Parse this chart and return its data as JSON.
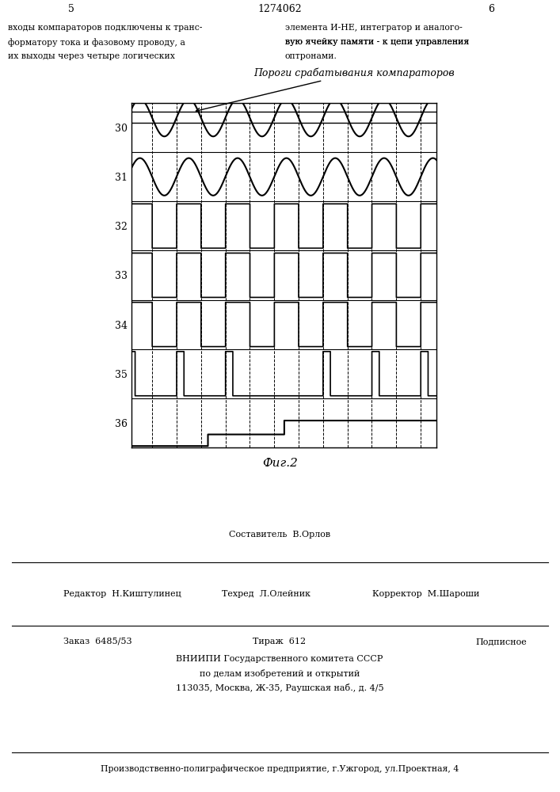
{
  "title_patent": "1274062",
  "page_left": "5",
  "page_right": "6",
  "annotation": "Пороги срабатывания компараторов",
  "fig_label": "Фиг.2",
  "yticks": [
    30,
    31,
    32,
    33,
    34,
    35,
    36
  ],
  "fig_background": "#ffffff",
  "line_color": "#000000",
  "period": 1.6,
  "x_max": 10.0,
  "n_rows": 7
}
